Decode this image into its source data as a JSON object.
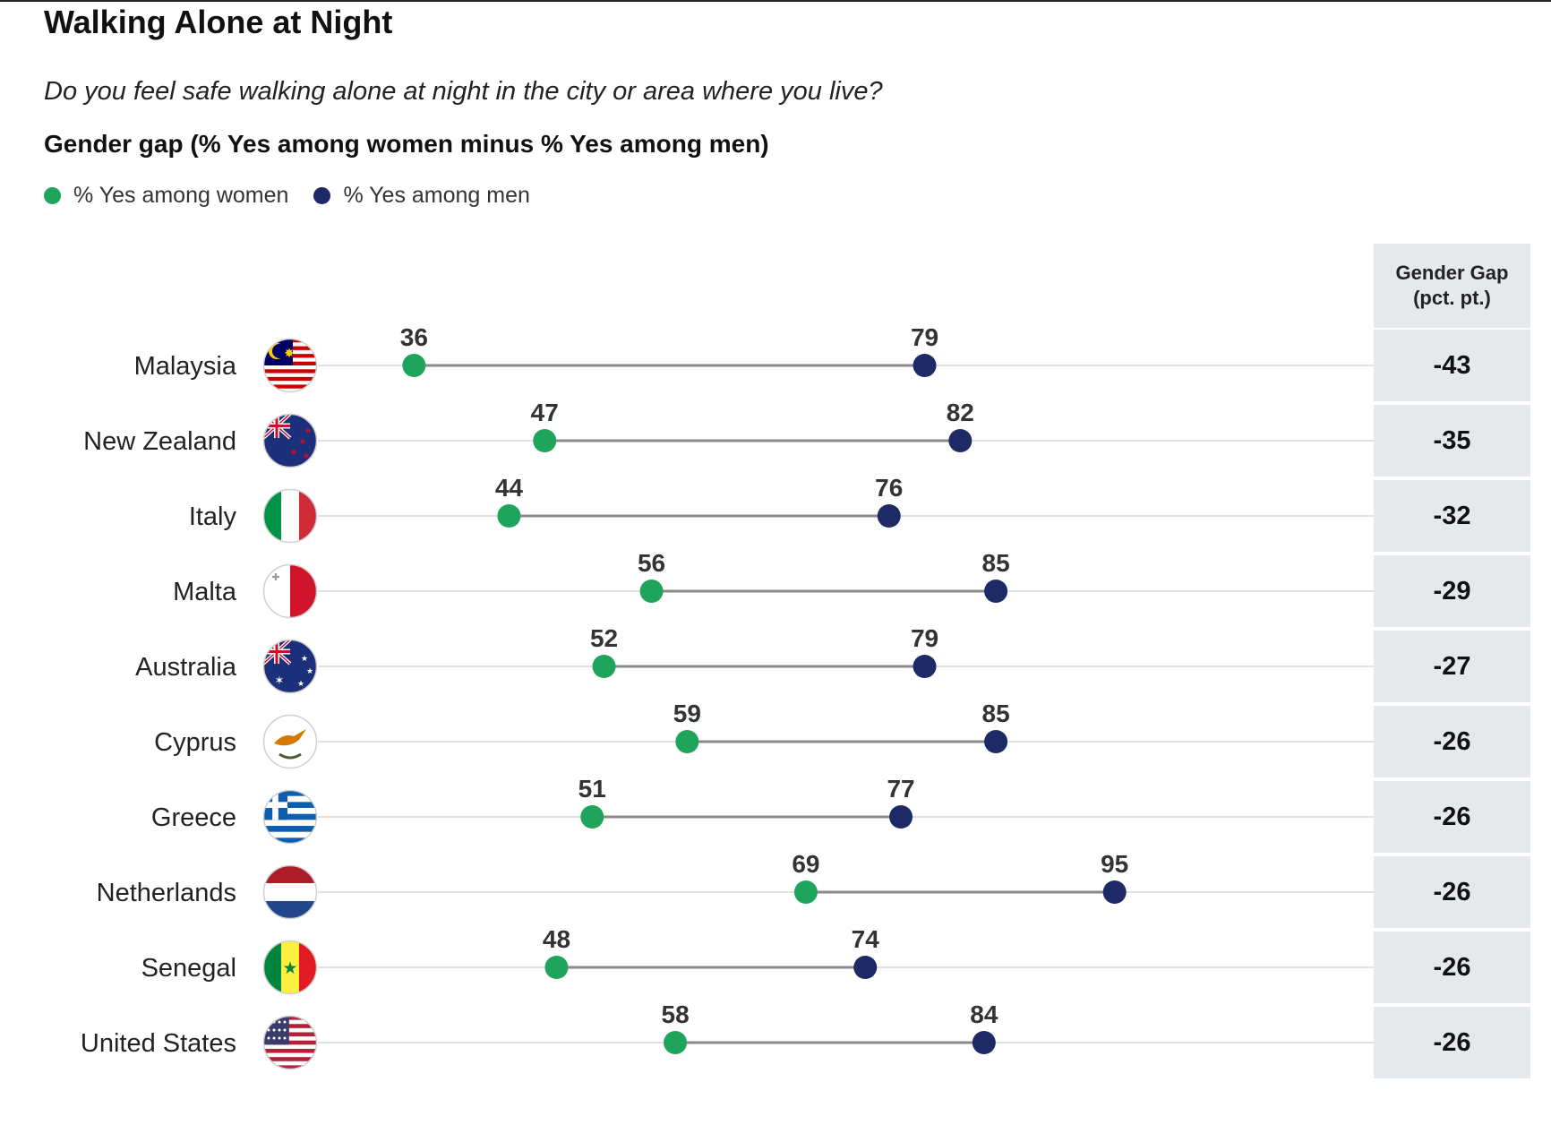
{
  "header": {
    "title": "Walking Alone at Night",
    "subtitle": "Do you feel safe walking alone at night in the city or area where you live?",
    "gap_title": "Gender gap (% Yes among women minus % Yes among men)"
  },
  "legend": {
    "women_label": "% Yes among women",
    "men_label": "% Yes among men"
  },
  "colors": {
    "women": "#1fa55b",
    "men": "#1d2a66",
    "connector": "#8a8a8a",
    "baseline": "#d6d6d6",
    "panel": "#e6e9ec"
  },
  "gap_column": {
    "header_line1": "Gender Gap",
    "header_line2": "(pct. pt.)"
  },
  "chart_data": {
    "type": "dumbbell",
    "title": "Walking Alone at Night",
    "subtitle": "Do you feel safe walking alone at night in the city or area where you live?",
    "xlabel": "",
    "ylabel": "",
    "xlim": [
      0,
      100
    ],
    "grid": false,
    "legend_position": "top-left",
    "series": [
      {
        "name": "% Yes among women"
      },
      {
        "name": "% Yes among men"
      }
    ],
    "rows": [
      {
        "country": "Malaysia",
        "flag": "malaysia-flag-icon",
        "women": 36,
        "men": 79,
        "gap": "-43"
      },
      {
        "country": "New Zealand",
        "flag": "new-zealand-flag-icon",
        "women": 47,
        "men": 82,
        "gap": "-35"
      },
      {
        "country": "Italy",
        "flag": "italy-flag-icon",
        "women": 44,
        "men": 76,
        "gap": "-32"
      },
      {
        "country": "Malta",
        "flag": "malta-flag-icon",
        "women": 56,
        "men": 85,
        "gap": "-29"
      },
      {
        "country": "Australia",
        "flag": "australia-flag-icon",
        "women": 52,
        "men": 79,
        "gap": "-27"
      },
      {
        "country": "Cyprus",
        "flag": "cyprus-flag-icon",
        "women": 59,
        "men": 85,
        "gap": "-26"
      },
      {
        "country": "Greece",
        "flag": "greece-flag-icon",
        "women": 51,
        "men": 77,
        "gap": "-26"
      },
      {
        "country": "Netherlands",
        "flag": "netherlands-flag-icon",
        "women": 69,
        "men": 95,
        "gap": "-26"
      },
      {
        "country": "Senegal",
        "flag": "senegal-flag-icon",
        "women": 48,
        "men": 74,
        "gap": "-26"
      },
      {
        "country": "United States",
        "flag": "united-states-flag-icon",
        "women": 58,
        "men": 84,
        "gap": "-26"
      }
    ]
  }
}
